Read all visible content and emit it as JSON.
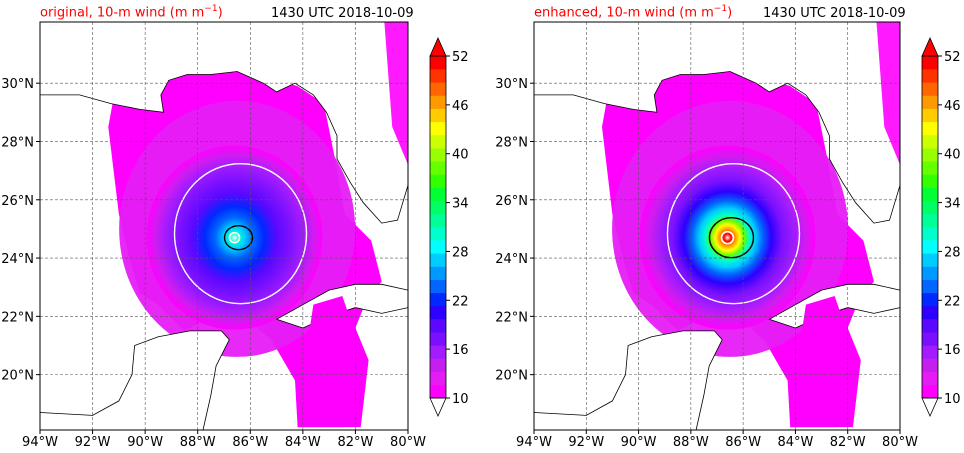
{
  "panels": [
    {
      "title": "original, 10-m wind (m m",
      "title_sup": "−1",
      "title_end": ")",
      "time_label": "1430 UTC 2018-10-09",
      "enhanced": false
    },
    {
      "title": "enhanced, 10-m wind (m m",
      "title_sup": "−1",
      "title_end": ")",
      "time_label": "1430 UTC 2018-10-09",
      "enhanced": true
    }
  ],
  "map": {
    "lon_labels": [
      "94°W",
      "92°W",
      "90°W",
      "88°W",
      "86°W",
      "84°W",
      "82°W",
      "80°W"
    ],
    "lon_values": [
      -94,
      -92,
      -90,
      -88,
      -86,
      -84,
      -82,
      -80
    ],
    "lat_labels": [
      "20°N",
      "22°N",
      "24°N",
      "26°N",
      "28°N",
      "30°N"
    ],
    "lat_values": [
      20,
      22,
      24,
      26,
      28,
      30
    ],
    "lon_range": [
      -94,
      -80
    ],
    "lat_range": [
      18.1,
      32.1
    ]
  },
  "colorbar": {
    "tick_labels": [
      "10",
      "16",
      "22",
      "28",
      "34",
      "40",
      "46",
      "52"
    ],
    "tick_values": [
      10,
      16,
      22,
      28,
      34,
      40,
      46,
      52
    ],
    "range": [
      10,
      52
    ],
    "colors": [
      "#ff00ff",
      "#e61cf5",
      "#c71ef0",
      "#a21cff",
      "#7a10ff",
      "#5a08ff",
      "#2d00ff",
      "#0028ff",
      "#0066ff",
      "#0099ff",
      "#00ccff",
      "#00ffff",
      "#00ffcc",
      "#00ff99",
      "#00ff66",
      "#00ff33",
      "#33ff00",
      "#66ff00",
      "#99ff00",
      "#ccff00",
      "#ffff00",
      "#ffcc00",
      "#ff9900",
      "#ff6600",
      "#ff3300",
      "#ff0000"
    ]
  }
}
